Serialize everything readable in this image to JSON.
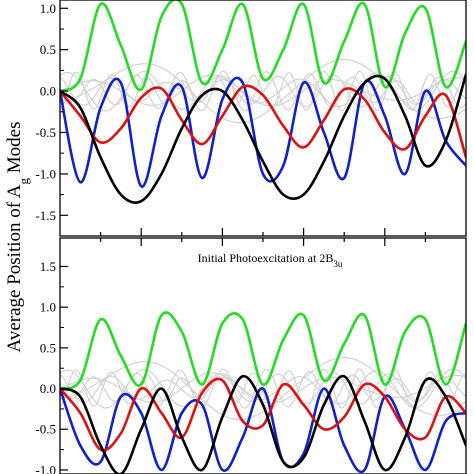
{
  "chart_data": {
    "type": "line",
    "ylabel": "Average Position of A",
    "ylabel_subscript": "g",
    "ylabel_suffix": " Modes",
    "panels": [
      {
        "id": "top",
        "ylim": [
          -1.75,
          1.1
        ],
        "yticks": [
          "1.0",
          "0.5",
          "0.0",
          "-0.5",
          "-1.0",
          "-1.5"
        ],
        "ytick_values": [
          1.0,
          0.5,
          0.0,
          -0.5,
          -1.0,
          -1.5
        ],
        "xlim": [
          0,
          10
        ],
        "series": [
          {
            "color": "#22dd22",
            "role": "green",
            "x": [
              0,
              0.5,
              1,
              1.5,
              2,
              2.5,
              3,
              3.5,
              4,
              4.5,
              5,
              5.5,
              6,
              6.5,
              7,
              7.5,
              8,
              8.5,
              9,
              9.5,
              10
            ],
            "y": [
              0,
              0.15,
              1.05,
              0.55,
              0.02,
              0.9,
              1.05,
              0.1,
              0.5,
              1.05,
              0.15,
              0.5,
              1.05,
              0.1,
              0.6,
              1.05,
              0.05,
              0.7,
              1.0,
              0.05,
              0.6
            ]
          },
          {
            "color": "#1020cc",
            "role": "blue",
            "x": [
              0,
              0.5,
              1,
              1.5,
              2,
              2.5,
              3,
              3.5,
              4,
              4.5,
              5,
              5.5,
              6,
              6.5,
              7,
              7.5,
              8,
              8.5,
              9,
              9.5,
              10
            ],
            "y": [
              0,
              -1.1,
              -0.2,
              0.1,
              -1.15,
              -0.3,
              0.05,
              -1.05,
              -0.1,
              0.1,
              -1.0,
              -0.9,
              0.1,
              -0.5,
              -1.05,
              0.1,
              -0.3,
              -1.0,
              0.0,
              -0.6,
              -0.9
            ]
          },
          {
            "color": "#dd1111",
            "role": "red",
            "x": [
              0,
              0.5,
              1,
              1.5,
              2,
              2.5,
              3,
              3.5,
              4,
              4.5,
              5,
              5.5,
              6,
              6.5,
              7,
              7.5,
              8,
              8.5,
              9,
              9.5,
              10
            ],
            "y": [
              0,
              -0.3,
              -0.62,
              -0.45,
              -0.08,
              0.03,
              -0.35,
              -0.64,
              -0.3,
              0.05,
              -0.05,
              -0.42,
              -0.68,
              -0.35,
              0.02,
              -0.1,
              -0.5,
              -0.7,
              -0.3,
              -0.05,
              -0.8
            ]
          },
          {
            "color": "#000000",
            "role": "black",
            "x": [
              0,
              0.5,
              1,
              1.5,
              2,
              2.5,
              3,
              3.5,
              4,
              4.5,
              5,
              5.5,
              6,
              6.5,
              7,
              7.5,
              8,
              8.5,
              9,
              9.5,
              10
            ],
            "y": [
              0,
              -0.2,
              -0.8,
              -1.25,
              -1.33,
              -1.0,
              -0.45,
              -0.05,
              0.0,
              -0.35,
              -0.85,
              -1.25,
              -1.25,
              -0.85,
              -0.3,
              0.1,
              0.15,
              -0.3,
              -0.9,
              -0.6,
              0.2
            ]
          }
        ]
      },
      {
        "id": "bottom",
        "ylim": [
          -1.05,
          1.85
        ],
        "yticks": [
          "1.5",
          "1.0",
          "0.5",
          "0.0",
          "-0.5",
          "-1.0"
        ],
        "ytick_values": [
          1.5,
          1.0,
          0.5,
          0.0,
          -0.5,
          -1.0
        ],
        "xlim": [
          0,
          10
        ],
        "annotation": {
          "text": "Initial Photoexcitation at 2B",
          "subscript": "3u"
        },
        "series": [
          {
            "color": "#22dd22",
            "role": "green",
            "x": [
              0,
              0.5,
              1,
              1.5,
              2,
              2.5,
              3,
              3.5,
              4,
              4.5,
              5,
              5.5,
              6,
              6.5,
              7,
              7.5,
              8,
              8.5,
              9,
              9.5,
              10
            ],
            "y": [
              0,
              0.1,
              0.85,
              0.4,
              0.05,
              0.9,
              0.7,
              0.05,
              0.8,
              0.85,
              0.05,
              0.6,
              0.9,
              0.1,
              0.55,
              0.9,
              0.05,
              0.7,
              0.85,
              0.05,
              0.8
            ]
          },
          {
            "color": "#1020cc",
            "role": "blue",
            "x": [
              0,
              0.5,
              1,
              1.5,
              2,
              2.5,
              3,
              3.5,
              4,
              4.5,
              5,
              5.5,
              6,
              6.5,
              7,
              7.5,
              8,
              8.5,
              9,
              9.5,
              10
            ],
            "y": [
              0,
              -0.7,
              -0.9,
              -0.1,
              -0.3,
              -1.0,
              -0.3,
              -0.2,
              -1.0,
              -0.6,
              0.0,
              -0.9,
              -0.8,
              0.0,
              -0.7,
              -1.0,
              -0.1,
              -0.5,
              -1.0,
              -0.4,
              -0.3
            ]
          },
          {
            "color": "#dd1111",
            "role": "red",
            "x": [
              0,
              0.5,
              1,
              1.5,
              2,
              2.5,
              3,
              3.5,
              4,
              4.5,
              5,
              5.5,
              6,
              6.5,
              7,
              7.5,
              8,
              8.5,
              9,
              9.5,
              10
            ],
            "y": [
              0,
              -0.3,
              -0.75,
              -0.55,
              0.0,
              -0.3,
              -0.6,
              -0.05,
              0.1,
              -0.4,
              -0.45,
              0.05,
              -0.2,
              -0.5,
              -0.35,
              0.05,
              -0.1,
              -0.5,
              -0.6,
              -0.1,
              -0.3
            ]
          },
          {
            "color": "#000000",
            "role": "black",
            "x": [
              0,
              0.5,
              1,
              1.5,
              2,
              2.5,
              3,
              3.5,
              4,
              4.5,
              5,
              5.5,
              6,
              6.5,
              7,
              7.5,
              8,
              8.5,
              9,
              9.5,
              10
            ],
            "y": [
              0,
              -0.1,
              -0.7,
              -1.05,
              -0.5,
              0.0,
              -0.6,
              -1.0,
              -0.35,
              0.15,
              -0.2,
              -0.9,
              -0.85,
              -0.2,
              0.15,
              -0.4,
              -1.0,
              -0.6,
              0.1,
              -0.1,
              -0.7
            ]
          }
        ]
      }
    ],
    "background_series_color": "#d2d2d2",
    "grid": false,
    "legend": "none"
  }
}
